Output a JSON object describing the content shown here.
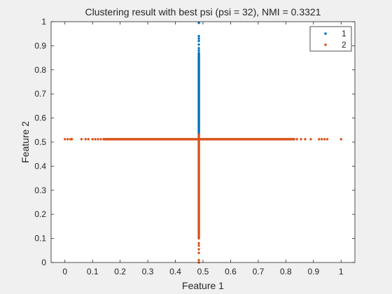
{
  "chart_data": {
    "type": "scatter",
    "title": "Clustering result with best psi (psi = 32), NMI = 0.3321",
    "xlabel": "Feature 1",
    "ylabel": "Feature 2",
    "xlim": [
      -0.05,
      1.05
    ],
    "ylim": [
      0,
      1
    ],
    "xticks": [
      "0",
      "0.1",
      "0.2",
      "0.3",
      "0.4",
      "0.5",
      "0.6",
      "0.7",
      "0.8",
      "0.9",
      "1"
    ],
    "yticks": [
      "0",
      "0.1",
      "0.2",
      "0.3",
      "0.4",
      "0.5",
      "0.6",
      "0.7",
      "0.8",
      "0.9",
      "1"
    ],
    "grid": false,
    "legend_position": "top-right",
    "series": [
      {
        "name": "1",
        "color": "#0072bd",
        "description": "vertical line at x = 0.485, y from 0.54 to 1.0",
        "segments": [
          {
            "x": [
              0.485,
              0.485
            ],
            "y": [
              0.54,
              0.87
            ]
          }
        ],
        "points": [
          {
            "x": 0.485,
            "y": 0.995
          },
          {
            "x": 0.485,
            "y": 0.94
          },
          {
            "x": 0.485,
            "y": 0.93
          },
          {
            "x": 0.485,
            "y": 0.92
          },
          {
            "x": 0.485,
            "y": 0.905
          },
          {
            "x": 0.485,
            "y": 0.89
          },
          {
            "x": 0.485,
            "y": 0.88
          }
        ]
      },
      {
        "name": "2",
        "color": "#d95319",
        "description": "horizontal line at y = 0.51 spanning x 0 to 1, plus vertical line at x = 0.485 from y 0 to 0.535",
        "segments": [
          {
            "x": [
              0.14,
              0.83
            ],
            "y": [
              0.512,
              0.512
            ]
          },
          {
            "x": [
              0.485,
              0.485
            ],
            "y": [
              0.1,
              0.535
            ]
          }
        ],
        "points": [
          {
            "x": 0.0,
            "y": 0.512
          },
          {
            "x": 0.01,
            "y": 0.512
          },
          {
            "x": 0.02,
            "y": 0.512
          },
          {
            "x": 0.025,
            "y": 0.512
          },
          {
            "x": 0.06,
            "y": 0.512
          },
          {
            "x": 0.075,
            "y": 0.512
          },
          {
            "x": 0.085,
            "y": 0.512
          },
          {
            "x": 0.1,
            "y": 0.512
          },
          {
            "x": 0.11,
            "y": 0.512
          },
          {
            "x": 0.12,
            "y": 0.512
          },
          {
            "x": 0.13,
            "y": 0.512
          },
          {
            "x": 0.84,
            "y": 0.512
          },
          {
            "x": 0.855,
            "y": 0.512
          },
          {
            "x": 0.87,
            "y": 0.512
          },
          {
            "x": 0.89,
            "y": 0.512
          },
          {
            "x": 0.92,
            "y": 0.512
          },
          {
            "x": 0.93,
            "y": 0.512
          },
          {
            "x": 0.94,
            "y": 0.512
          },
          {
            "x": 0.95,
            "y": 0.512
          },
          {
            "x": 1.0,
            "y": 0.512
          },
          {
            "x": 0.485,
            "y": 0.0
          },
          {
            "x": 0.485,
            "y": 0.01
          },
          {
            "x": 0.485,
            "y": 0.04
          },
          {
            "x": 0.485,
            "y": 0.055
          },
          {
            "x": 0.485,
            "y": 0.07
          },
          {
            "x": 0.485,
            "y": 0.08
          }
        ]
      }
    ]
  }
}
